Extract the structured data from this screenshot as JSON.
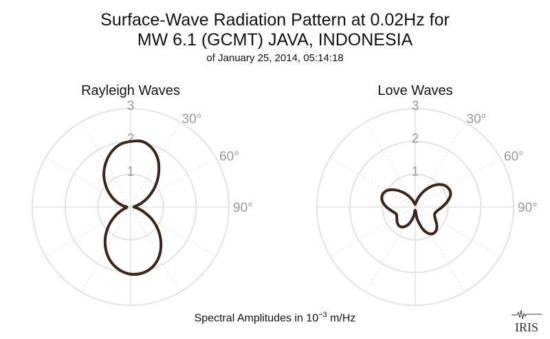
{
  "title_line1": "Surface-Wave Radiation Pattern at 0.02Hz for",
  "title_line2": "MW 6.1 (GCMT) JAVA, INDONESIA",
  "subtitle": "of January 25, 2014, 05:14:18",
  "footer": {
    "prefix": "Spectral Amplitudes in ",
    "base": "10",
    "exp": "−3",
    "unit": " m/Hz"
  },
  "logo_text": "IRIS",
  "colors": {
    "pattern": "#3b2418",
    "grid": "#e2e2e2",
    "label": "#9a9a9a"
  },
  "chart_data": [
    {
      "type": "polar-line",
      "title": "Rayleigh Waves",
      "radial_ticks": [
        "1",
        "2",
        "3"
      ],
      "rmax": 3.0,
      "angle_tick_labels": [
        "30°",
        "60°",
        "90°"
      ],
      "angles_deg": [
        0,
        10,
        20,
        30,
        40,
        50,
        60,
        70,
        80,
        90,
        100,
        110,
        120,
        130,
        140,
        150,
        160,
        170,
        180,
        190,
        200,
        210,
        220,
        230,
        240,
        250,
        260,
        270,
        280,
        290,
        300,
        310,
        320,
        330,
        340,
        350
      ],
      "amplitudes": [
        2.0,
        2.03,
        1.91,
        1.67,
        1.33,
        0.98,
        0.64,
        0.36,
        0.16,
        0.1,
        0.2,
        0.42,
        0.75,
        1.1,
        1.44,
        1.74,
        1.95,
        2.05,
        2.05,
        1.95,
        1.77,
        1.51,
        1.2,
        0.86,
        0.54,
        0.29,
        0.14,
        0.12,
        0.25,
        0.45,
        0.7,
        0.98,
        1.27,
        1.53,
        1.76,
        1.93
      ]
    },
    {
      "type": "polar-line",
      "title": "Love Waves",
      "radial_ticks": [
        "1",
        "2",
        "3"
      ],
      "rmax": 3.0,
      "angle_tick_labels": [
        "30°",
        "60°",
        "90°"
      ],
      "angles_deg": [
        0,
        10,
        20,
        30,
        40,
        50,
        60,
        70,
        80,
        90,
        100,
        110,
        120,
        130,
        140,
        150,
        160,
        170,
        180,
        190,
        200,
        210,
        220,
        230,
        240,
        250,
        260,
        270,
        280,
        290,
        300,
        310,
        320,
        330,
        340,
        350
      ],
      "amplitudes": [
        0.08,
        0.15,
        0.33,
        0.58,
        0.85,
        1.06,
        1.16,
        1.15,
        1.0,
        0.82,
        0.68,
        0.63,
        0.7,
        0.86,
        0.97,
        0.95,
        0.75,
        0.4,
        0.1,
        0.3,
        0.54,
        0.7,
        0.76,
        0.72,
        0.65,
        0.62,
        0.72,
        0.88,
        1.02,
        1.07,
        1.0,
        0.81,
        0.58,
        0.37,
        0.2,
        0.1
      ]
    }
  ]
}
